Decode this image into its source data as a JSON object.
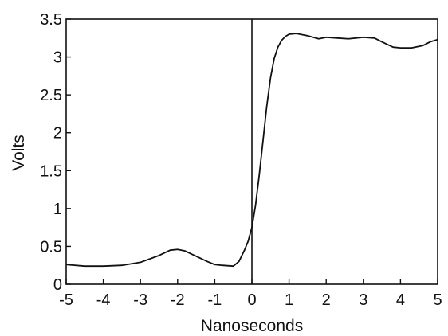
{
  "chart_data": {
    "type": "line",
    "title": "",
    "xlabel": "Nanoseconds",
    "ylabel": "Volts",
    "xlim": [
      -5,
      5
    ],
    "ylim": [
      0,
      3.5
    ],
    "xticks": [
      -5,
      -4,
      -3,
      -2,
      -1,
      0,
      1,
      2,
      3,
      4,
      5
    ],
    "yticks": [
      0,
      0.5,
      1,
      1.5,
      2,
      2.5,
      3,
      3.5
    ],
    "xtick_labels": [
      "-5",
      "-4",
      "-3",
      "-2",
      "-1",
      "0",
      "1",
      "2",
      "3",
      "4",
      "5"
    ],
    "ytick_labels": [
      "0",
      "0.5",
      "1",
      "1.5",
      "2",
      "2.5",
      "3",
      "3.5"
    ],
    "grid": false,
    "reference_line_x": 0,
    "series": [
      {
        "x": [
          -5,
          -4.5,
          -4,
          -3.5,
          -3,
          -2.5,
          -2.2,
          -2,
          -1.8,
          -1.5,
          -1.2,
          -1,
          -0.8,
          -0.5,
          -0.35,
          -0.2,
          -0.1,
          0,
          0.1,
          0.2,
          0.3,
          0.4,
          0.5,
          0.6,
          0.7,
          0.8,
          0.9,
          1,
          1.2,
          1.5,
          1.8,
          2,
          2.3,
          2.6,
          3,
          3.3,
          3.5,
          3.8,
          4,
          4.3,
          4.6,
          4.8,
          5
        ],
        "y": [
          0.26,
          0.24,
          0.24,
          0.25,
          0.29,
          0.38,
          0.45,
          0.46,
          0.44,
          0.37,
          0.3,
          0.26,
          0.25,
          0.24,
          0.3,
          0.45,
          0.57,
          0.75,
          1.05,
          1.45,
          1.9,
          2.35,
          2.72,
          2.98,
          3.13,
          3.22,
          3.27,
          3.3,
          3.31,
          3.28,
          3.24,
          3.26,
          3.25,
          3.24,
          3.26,
          3.25,
          3.2,
          3.13,
          3.12,
          3.12,
          3.15,
          3.2,
          3.23
        ]
      }
    ]
  }
}
